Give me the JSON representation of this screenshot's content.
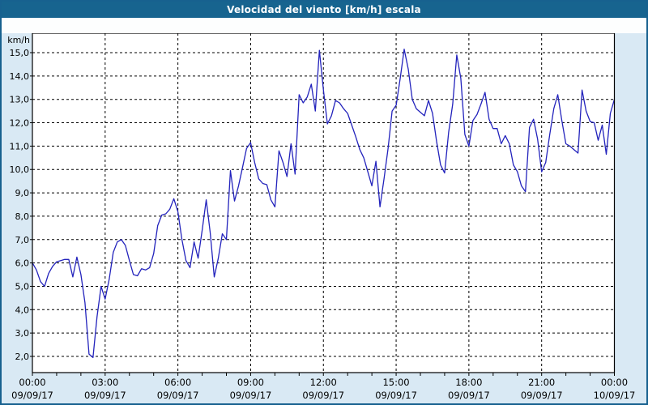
{
  "window": {
    "title": "Velocidad del viento [km/h] escala"
  },
  "colors": {
    "titlebar_bg": "#17648f",
    "titlebar_text": "#ffffff",
    "window_bg": "#d9e9f4",
    "window_border": "#17618f",
    "plot_bg": "#ffffff",
    "plot_border": "#000000",
    "grid": "#000000",
    "tick_text": "#000000",
    "line": "#2323bc"
  },
  "chart_data": {
    "type": "line",
    "title": "Velocidad del viento [km/h] escala",
    "y_unit_label": "km/h",
    "ylabel": "km/h",
    "xlabel": "",
    "grid": "dashed",
    "legend": "none",
    "ylim_gridlines": [
      2.0,
      15.0
    ],
    "y_ticks": {
      "values": [
        15,
        14,
        13,
        12,
        11,
        10,
        9,
        8,
        7,
        6,
        5,
        4,
        3,
        2
      ],
      "labels": [
        "15,0",
        "14,0",
        "13,0",
        "12,0",
        "11,0",
        "10,0",
        "9,0",
        "8,0",
        "7,0",
        "6,0",
        "5,0",
        "4,0",
        "3,0",
        "2,0"
      ]
    },
    "x_axis": {
      "hours_span": 24,
      "minor_tick_every_hours": 1,
      "major_ticks": [
        {
          "hour": 0,
          "time": "00:00",
          "date": "09/09/17"
        },
        {
          "hour": 3,
          "time": "03:00",
          "date": "09/09/17"
        },
        {
          "hour": 6,
          "time": "06:00",
          "date": "09/09/17"
        },
        {
          "hour": 9,
          "time": "09:00",
          "date": "09/09/17"
        },
        {
          "hour": 12,
          "time": "12:00",
          "date": "09/09/17"
        },
        {
          "hour": 15,
          "time": "15:00",
          "date": "09/09/17"
        },
        {
          "hour": 18,
          "time": "18:00",
          "date": "09/09/17"
        },
        {
          "hour": 21,
          "time": "21:00",
          "date": "09/09/17"
        },
        {
          "hour": 24,
          "time": "00:00",
          "date": "10/09/17"
        }
      ]
    },
    "series": [
      {
        "name": "Velocidad del viento",
        "unit": "km/h",
        "color": "#2323bc",
        "start_hour": 0,
        "interval_minutes": 10,
        "values": [
          6.0,
          5.7,
          5.2,
          5.0,
          5.55,
          5.85,
          6.05,
          6.1,
          6.15,
          6.15,
          5.4,
          6.25,
          5.5,
          4.3,
          2.1,
          1.95,
          3.7,
          5.0,
          4.45,
          5.3,
          6.45,
          6.9,
          7.0,
          6.75,
          6.1,
          5.5,
          5.45,
          5.75,
          5.7,
          5.8,
          6.4,
          7.6,
          8.05,
          8.1,
          8.3,
          8.75,
          8.2,
          7.0,
          6.1,
          5.8,
          6.9,
          6.2,
          7.4,
          8.7,
          7.3,
          5.4,
          6.2,
          7.25,
          7.0,
          9.95,
          8.65,
          9.3,
          10.1,
          10.9,
          11.15,
          10.3,
          9.6,
          9.4,
          9.35,
          8.7,
          8.4,
          10.8,
          10.3,
          9.7,
          11.1,
          9.8,
          13.2,
          12.85,
          13.1,
          13.65,
          12.5,
          15.1,
          13.4,
          11.95,
          12.3,
          12.95,
          12.85,
          12.6,
          12.4,
          11.9,
          11.4,
          10.85,
          10.5,
          9.9,
          9.3,
          10.35,
          8.4,
          9.6,
          10.9,
          12.5,
          12.75,
          13.9,
          15.15,
          14.3,
          13.0,
          12.6,
          12.45,
          12.3,
          12.95,
          12.4,
          11.2,
          10.2,
          9.85,
          11.6,
          12.8,
          14.9,
          13.9,
          11.5,
          11.0,
          12.1,
          12.35,
          12.8,
          13.3,
          12.15,
          11.75,
          11.75,
          11.1,
          11.45,
          11.1,
          10.2,
          9.9,
          9.3,
          9.05,
          11.8,
          12.15,
          11.3,
          9.9,
          10.3,
          11.5,
          12.6,
          13.2,
          12.1,
          11.1,
          11.0,
          10.85,
          10.7,
          13.4,
          12.5,
          12.05,
          12.0,
          11.25,
          11.9,
          10.65,
          12.4,
          13.0
        ]
      }
    ]
  }
}
